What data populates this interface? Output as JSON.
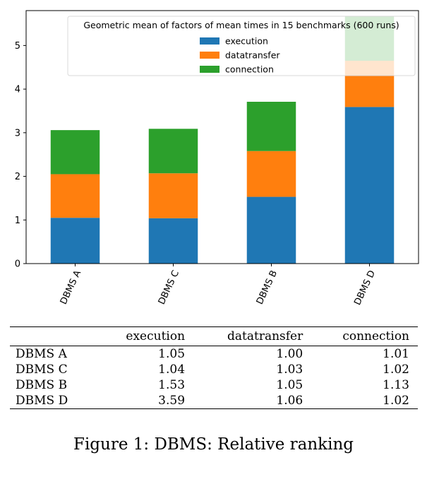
{
  "chart_data": {
    "type": "bar",
    "stacked": true,
    "categories": [
      "DBMS A",
      "DBMS C",
      "DBMS B",
      "DBMS D"
    ],
    "series": [
      {
        "name": "execution",
        "color": "#1f77b4",
        "values": [
          1.05,
          1.04,
          1.53,
          3.59
        ]
      },
      {
        "name": "datatransfer",
        "color": "#ff7f0e",
        "values": [
          1.0,
          1.03,
          1.05,
          1.06
        ]
      },
      {
        "name": "connection",
        "color": "#2ca02c",
        "values": [
          1.01,
          1.02,
          1.13,
          1.02
        ]
      }
    ],
    "legend_title": "Geometric mean of factors of mean times in 15 benchmarks (600 runs)",
    "legend_position": "top-right",
    "ylim": [
      0,
      5.8
    ],
    "yticks": [
      0,
      1,
      2,
      3,
      4,
      5
    ],
    "xtick_rotation": -65,
    "grid": false
  },
  "table": {
    "columns": [
      "",
      "execution",
      "datatransfer",
      "connection"
    ],
    "rows": [
      [
        "DBMS A",
        "1.05",
        "1.00",
        "1.01"
      ],
      [
        "DBMS C",
        "1.04",
        "1.03",
        "1.02"
      ],
      [
        "DBMS B",
        "1.53",
        "1.05",
        "1.13"
      ],
      [
        "DBMS D",
        "3.59",
        "1.06",
        "1.02"
      ]
    ]
  },
  "caption": "Figure 1: DBMS: Relative ranking"
}
